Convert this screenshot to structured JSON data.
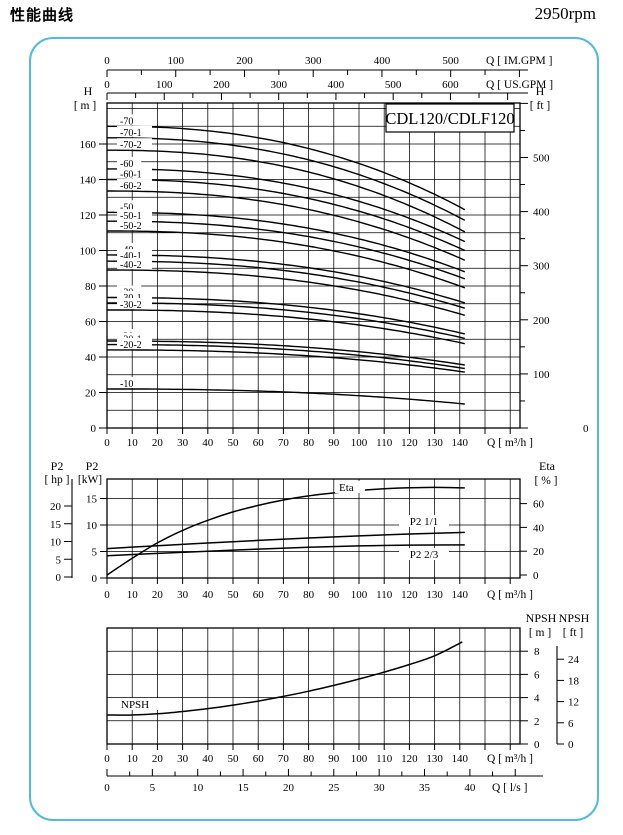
{
  "header": {
    "title": "性能曲线",
    "rpm": "2950rpm"
  },
  "accent_color": "#54b9df",
  "chart_data": [
    {
      "type": "line",
      "id": "head-capacity",
      "model": "CDL120/CDLF120",
      "x": {
        "unit": "Q [ m³/h ]",
        "ticks": [
          0,
          10,
          20,
          30,
          40,
          50,
          60,
          70,
          80,
          90,
          100,
          110,
          120,
          130,
          140
        ],
        "max": 164
      },
      "x_im": {
        "unit": "Q [ IM.GPM ]",
        "ticks": [
          0,
          100,
          200,
          300,
          400,
          500
        ]
      },
      "x_us": {
        "unit": "Q [ US.GPM ]",
        "ticks": [
          0,
          100,
          200,
          300,
          400,
          500,
          600
        ]
      },
      "y": {
        "name": "H",
        "unit": "[ m ]",
        "ticks": [
          0,
          20,
          40,
          60,
          80,
          100,
          120,
          140,
          160
        ],
        "grid_max": 180
      },
      "y_ft": {
        "name": "H",
        "unit": "[ ft ]",
        "ticks": [
          0,
          100,
          200,
          300,
          400,
          500
        ]
      },
      "q_end": 142,
      "curves": [
        {
          "label": "-70",
          "h0": 170,
          "h1": 123
        },
        {
          "label": "-70-1",
          "h0": 163.5,
          "h1": 117
        },
        {
          "label": "-70-2",
          "h0": 156.5,
          "h1": 110.5
        },
        {
          "label": "-60",
          "h0": 146,
          "h1": 105
        },
        {
          "label": "-60-1",
          "h0": 140,
          "h1": 100
        },
        {
          "label": "-60-2",
          "h0": 133.5,
          "h1": 94.5
        },
        {
          "label": "-50",
          "h0": 121.5,
          "h1": 88
        },
        {
          "label": "-50-1",
          "h0": 116.5,
          "h1": 84
        },
        {
          "label": "-50-2",
          "h0": 111,
          "h1": 79
        },
        {
          "label": "-40",
          "h0": 97.5,
          "h1": 70.5
        },
        {
          "label": "-40-1",
          "h0": 94,
          "h1": 67.5
        },
        {
          "label": "-40-2",
          "h0": 89,
          "h1": 63.5
        },
        {
          "label": "-30",
          "h0": 73.5,
          "h1": 53
        },
        {
          "label": "-30-1",
          "h0": 70.5,
          "h1": 50.5
        },
        {
          "label": "-30-2",
          "h0": 66.5,
          "h1": 47.5
        },
        {
          "label": "-20",
          "h0": 49,
          "h1": 35.5
        },
        {
          "label": "-20-1",
          "h0": 47,
          "h1": 33.5
        },
        {
          "label": "-20-2",
          "h0": 44,
          "h1": 31.5
        },
        {
          "label": "-10",
          "h0": 22,
          "h1": 13.5
        }
      ]
    },
    {
      "type": "line",
      "id": "power-efficiency",
      "y_kw": {
        "name": "P2",
        "unit": "[kW]",
        "ticks": [
          0,
          5,
          10,
          15
        ]
      },
      "y_hp": {
        "name": "P2",
        "unit": "[ hp ]",
        "ticks": [
          0,
          5,
          10,
          15,
          20
        ]
      },
      "y_eta": {
        "name": "Eta",
        "unit": "[ % ]",
        "ticks": [
          0,
          20,
          40,
          60
        ]
      },
      "x": {
        "unit": "Q [ m³/h ]",
        "ticks": [
          0,
          10,
          20,
          30,
          40,
          50,
          60,
          70,
          80,
          90,
          100,
          110,
          120,
          130,
          140
        ]
      },
      "series": [
        {
          "name": "Eta",
          "axis": "eta",
          "points": [
            [
              0,
              0
            ],
            [
              10,
              14
            ],
            [
              20,
              27
            ],
            [
              30,
              37.5
            ],
            [
              40,
              46
            ],
            [
              50,
              53
            ],
            [
              60,
              58.5
            ],
            [
              70,
              63
            ],
            [
              80,
              66.5
            ],
            [
              90,
              69
            ],
            [
              100,
              71
            ],
            [
              110,
              72.5
            ],
            [
              120,
              73.3
            ],
            [
              130,
              73.6
            ],
            [
              142,
              73.2
            ]
          ]
        },
        {
          "name": "P2  1/1",
          "axis": "kw",
          "points": [
            [
              0,
              5.55
            ],
            [
              20,
              6.1
            ],
            [
              40,
              6.6
            ],
            [
              60,
              7.1
            ],
            [
              80,
              7.55
            ],
            [
              100,
              7.95
            ],
            [
              120,
              8.3
            ],
            [
              142,
              8.6
            ]
          ]
        },
        {
          "name": "P2  2/3",
          "axis": "kw",
          "points": [
            [
              0,
              4.2
            ],
            [
              20,
              4.65
            ],
            [
              40,
              5.05
            ],
            [
              60,
              5.45
            ],
            [
              80,
              5.8
            ],
            [
              100,
              6.05
            ],
            [
              120,
              6.2
            ],
            [
              142,
              6.25
            ]
          ]
        }
      ]
    },
    {
      "type": "line",
      "id": "npsh",
      "y_m": {
        "name": "NPSH",
        "unit": "[ m ]",
        "ticks": [
          0,
          2,
          4,
          6,
          8
        ]
      },
      "y_ft": {
        "name": "NPSH",
        "unit": "[ ft ]",
        "ticks": [
          0,
          6,
          12,
          18,
          24
        ]
      },
      "x": {
        "unit": "Q [ m³/h ]",
        "ticks": [
          0,
          10,
          20,
          30,
          40,
          50,
          60,
          70,
          80,
          90,
          100,
          110,
          120,
          130,
          140
        ]
      },
      "x_ls": {
        "unit": "Q [ l/s ]",
        "ticks": [
          0,
          5,
          10,
          15,
          20,
          25,
          30,
          35,
          40
        ]
      },
      "series": [
        {
          "name": "NPSH",
          "points": [
            [
              0,
              2.5
            ],
            [
              10,
              2.5
            ],
            [
              20,
              2.6
            ],
            [
              30,
              2.8
            ],
            [
              40,
              3.05
            ],
            [
              50,
              3.35
            ],
            [
              60,
              3.7
            ],
            [
              70,
              4.1
            ],
            [
              80,
              4.55
            ],
            [
              90,
              5.05
            ],
            [
              100,
              5.6
            ],
            [
              110,
              6.2
            ],
            [
              120,
              6.85
            ],
            [
              130,
              7.6
            ],
            [
              141,
              8.8
            ]
          ]
        }
      ]
    }
  ]
}
